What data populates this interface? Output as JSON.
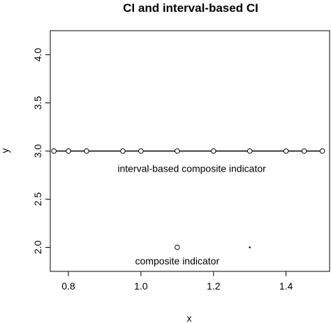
{
  "chart_data": {
    "type": "scatter",
    "title": "CI and interval-based CI",
    "xlabel": "x",
    "ylabel": "y",
    "xlim": [
      0.75,
      1.52
    ],
    "ylim": [
      1.75,
      4.25
    ],
    "x_ticks": [
      0.8,
      1.0,
      1.2,
      1.4
    ],
    "x_tick_labels": [
      "0.8",
      "1.0",
      "1.2",
      "1.4"
    ],
    "y_ticks": [
      2.0,
      2.5,
      3.0,
      3.5,
      4.0
    ],
    "y_tick_labels": [
      "2.0",
      "2.5",
      "3.0",
      "3.5",
      "4.0"
    ],
    "grid": false,
    "series": [
      {
        "style": "line+points",
        "color": "#000000",
        "x": [
          0.76,
          0.8,
          0.85,
          0.95,
          1.0,
          1.1,
          1.2,
          1.3,
          1.4,
          1.45,
          1.5
        ],
        "y": [
          3.0,
          3.0,
          3.0,
          3.0,
          3.0,
          3.0,
          3.0,
          3.0,
          3.0,
          3.0,
          3.0
        ]
      },
      {
        "style": "points",
        "color": "#000000",
        "x": [
          1.1
        ],
        "y": [
          2.0
        ]
      },
      {
        "style": "dot",
        "color": "#000000",
        "x": [
          1.3
        ],
        "y": [
          2.0
        ]
      }
    ],
    "annotations": [
      {
        "text": "interval-based composite indicator",
        "x": 1.14,
        "y": 2.81
      },
      {
        "text": "composite indicator",
        "x": 1.1,
        "y": 1.85
      }
    ]
  }
}
